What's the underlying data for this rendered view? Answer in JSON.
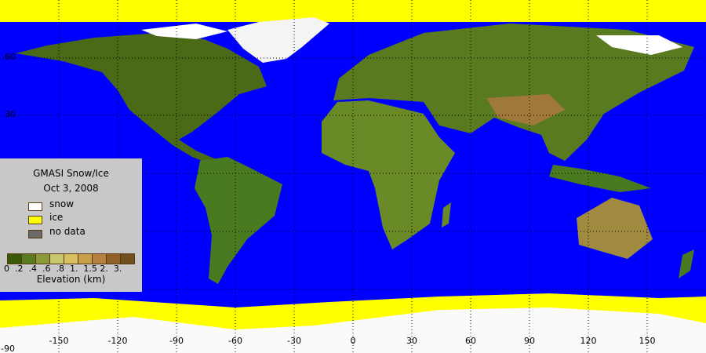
{
  "legend": {
    "title": "GMASI Snow/Ice",
    "date": "Oct  3, 2008",
    "categories": [
      {
        "label": "snow",
        "color": "#ffffff"
      },
      {
        "label": "ice",
        "color": "#ffff00"
      },
      {
        "label": "no data",
        "color": "#6a6a6a"
      }
    ],
    "elevation_colors": [
      "#3a5a0a",
      "#5a7a20",
      "#8a9a38",
      "#c8c870",
      "#d8c060",
      "#c8a048",
      "#b88040",
      "#906028",
      "#705020"
    ],
    "elevation_ticks": "0  .2  .4  .6  .8  1.  1.5 2.  3.",
    "elevation_label": "Elevation (km)"
  },
  "axes": {
    "longitude_labels": [
      "-150",
      "-120",
      "-90",
      "-60",
      "-30",
      "0",
      "30",
      "60",
      "90",
      "120",
      "150"
    ],
    "latitude_labels": [
      "60",
      "30"
    ],
    "corner_label": "-90"
  },
  "colors": {
    "ocean": "#0000ff",
    "land": "#4a6a18",
    "snow": "#fafafa",
    "ice": "#ffff00"
  }
}
